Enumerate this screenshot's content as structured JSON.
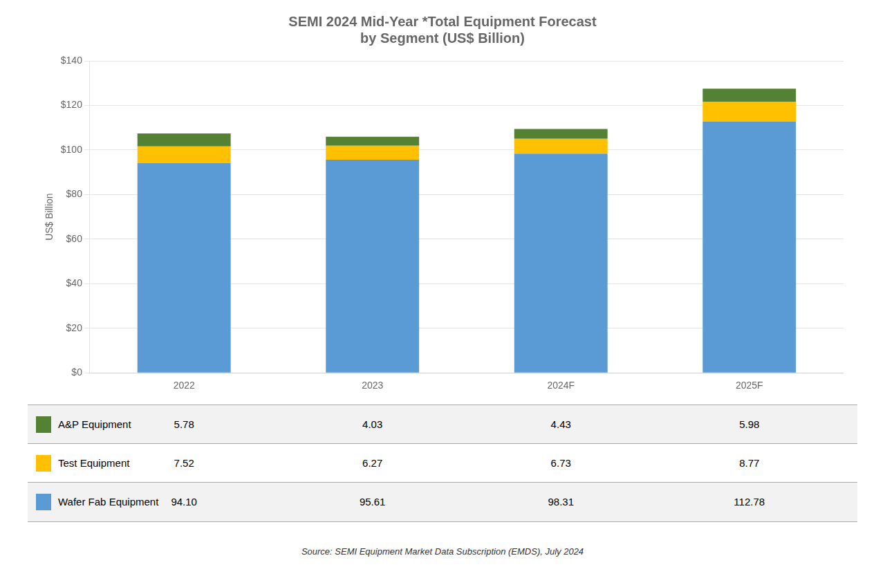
{
  "chart_data": {
    "type": "bar",
    "title": "SEMI 2024 Mid-Year *Total Equipment Forecast\nby Segment (US$ Billion)",
    "categories": [
      "2022",
      "2023",
      "2024F",
      "2025F"
    ],
    "series": [
      {
        "name": "Wafer Fab Equipment",
        "color": "#5B9BD5",
        "values": [
          94.1,
          95.61,
          98.31,
          112.78
        ],
        "value_labels": [
          "94.10",
          "95.61",
          "98.31",
          "112.78"
        ]
      },
      {
        "name": "Test Equipment",
        "color": "#FFC000",
        "values": [
          7.52,
          6.27,
          6.73,
          8.77
        ]
      },
      {
        "name": "A&P Equipment",
        "color": "#548235",
        "values": [
          5.78,
          4.03,
          4.43,
          5.98
        ]
      }
    ],
    "ylabel": "US$ Billion",
    "ylim": [
      0,
      140
    ],
    "yticks": [
      {
        "value": 0,
        "label": "$0"
      },
      {
        "value": 20,
        "label": "$20"
      },
      {
        "value": 40,
        "label": "$40"
      },
      {
        "value": 60,
        "label": "$60"
      },
      {
        "value": 80,
        "label": "$80"
      },
      {
        "value": 100,
        "label": "$100"
      },
      {
        "value": 120,
        "label": "$120"
      },
      {
        "value": 140,
        "label": "$140"
      }
    ],
    "stacked": true,
    "grid": true,
    "source": "Source: SEMI Equipment Market Data Subscription (EMDS), July 2024"
  }
}
